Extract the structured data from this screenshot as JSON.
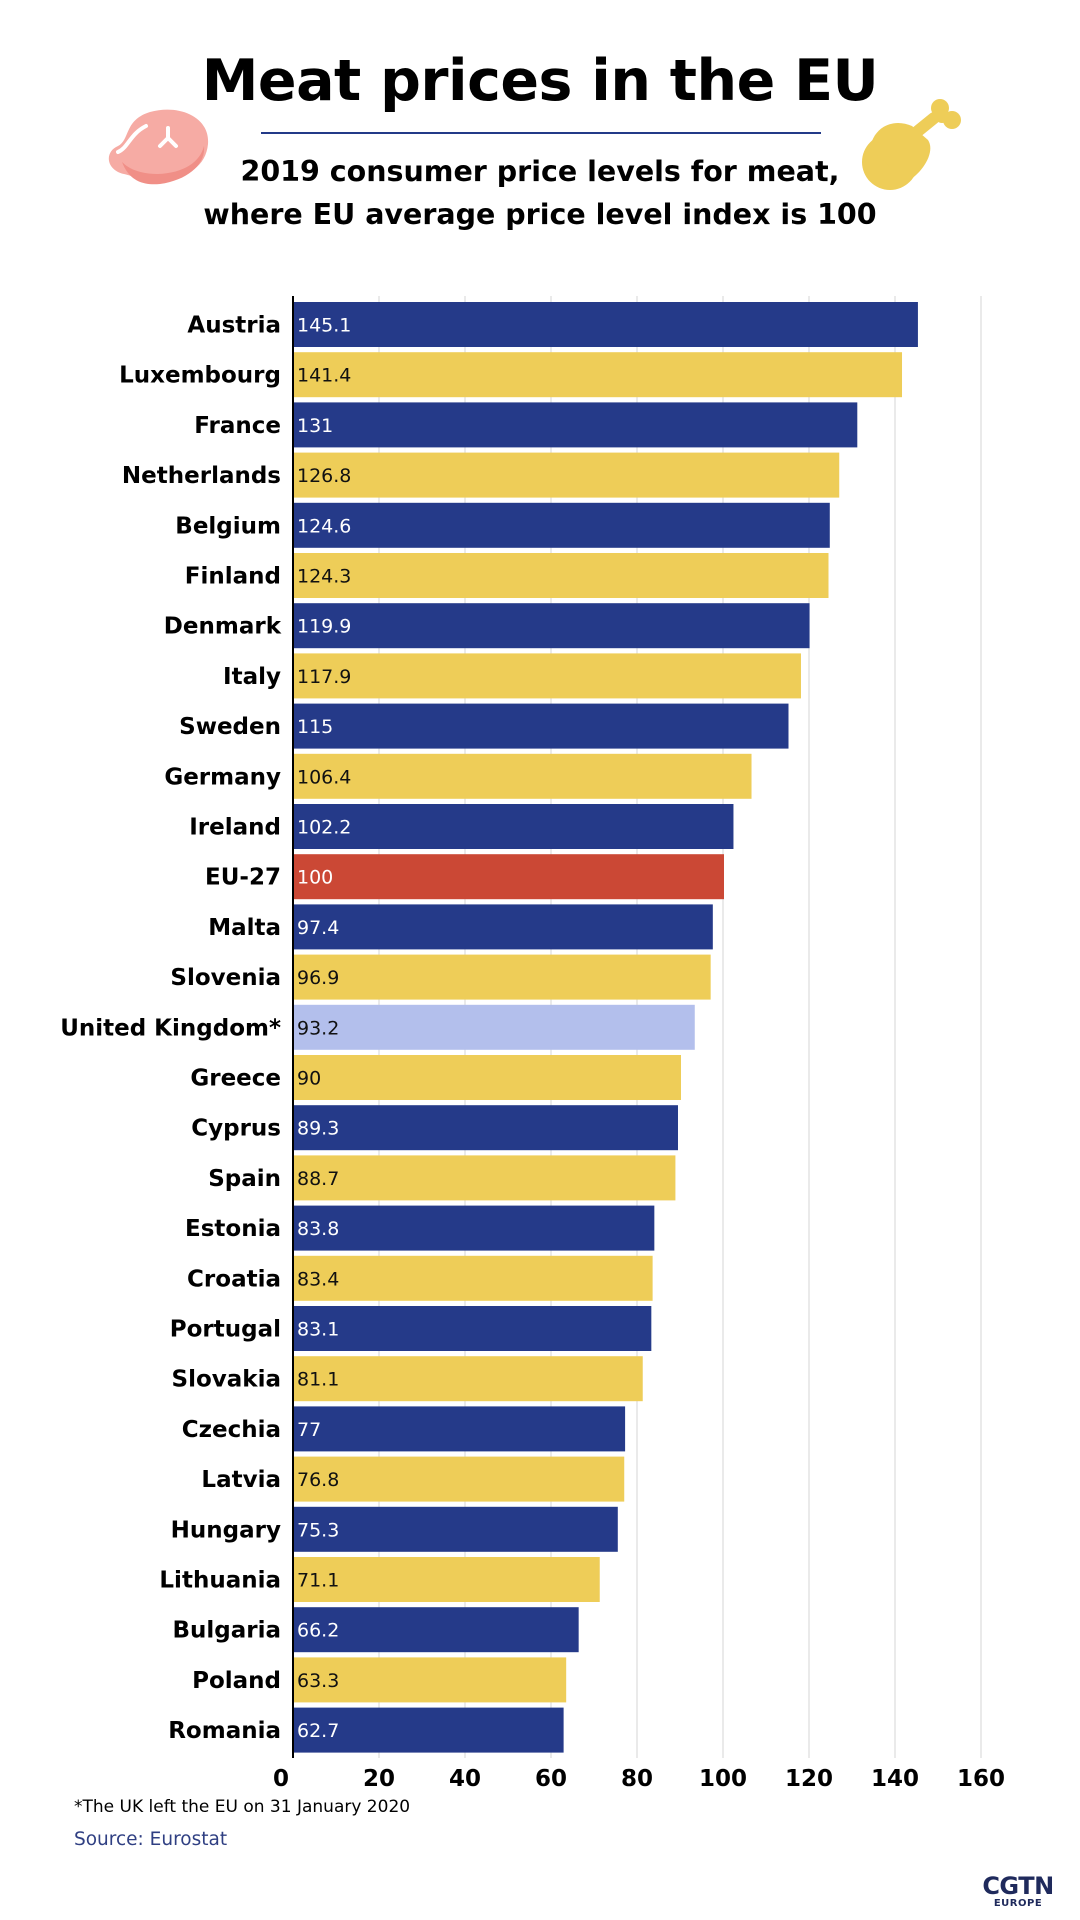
{
  "header": {
    "title": "Meat prices in the EU",
    "subtitle_line1": "2019 consumer price levels for meat,",
    "subtitle_line2": "where EU average price level index is 100"
  },
  "icons": {
    "left": "steak-icon",
    "right": "chicken-drumstick-icon"
  },
  "colors": {
    "navy": "#253a89",
    "yellow": "#eecd58",
    "red": "#cb4835",
    "light_blue": "#b3bfec",
    "steak": "#f6aba4",
    "drumstick": "#eecd58"
  },
  "chart_data": {
    "type": "bar",
    "orientation": "horizontal",
    "categories": [
      "Austria",
      "Luxembourg",
      "France",
      "Netherlands",
      "Belgium",
      "Finland",
      "Denmark",
      "Italy",
      "Sweden",
      "Germany",
      "Ireland",
      "EU-27",
      "Malta",
      "Slovenia",
      "United Kingdom*",
      "Greece",
      "Cyprus",
      "Spain",
      "Estonia",
      "Croatia",
      "Portugal",
      "Slovakia",
      "Czechia",
      "Latvia",
      "Hungary",
      "Lithuania",
      "Bulgaria",
      "Poland",
      "Romania"
    ],
    "values": [
      145.1,
      141.4,
      131,
      126.8,
      124.6,
      124.3,
      119.9,
      117.9,
      115,
      106.4,
      102.2,
      100,
      97.4,
      96.9,
      93.2,
      90,
      89.3,
      88.7,
      83.8,
      83.4,
      83.1,
      81.1,
      77,
      76.8,
      75.3,
      71.1,
      66.2,
      63.3,
      62.7
    ],
    "value_labels": [
      "145.1",
      "141.4",
      "131",
      "126.8",
      "124.6",
      "124.3",
      "119.9",
      "117.9",
      "115",
      "106.4",
      "102.2",
      "100",
      "97.4",
      "96.9",
      "93.2",
      "90",
      "89.3",
      "88.7",
      "83.8",
      "83.4",
      "83.1",
      "81.1",
      "77",
      "76.8",
      "75.3",
      "71.1",
      "66.2",
      "63.3",
      "62.7"
    ],
    "bar_colors": [
      "#253a89",
      "#eecd58",
      "#253a89",
      "#eecd58",
      "#253a89",
      "#eecd58",
      "#253a89",
      "#eecd58",
      "#253a89",
      "#eecd58",
      "#253a89",
      "#cb4835",
      "#253a89",
      "#eecd58",
      "#b3bfec",
      "#eecd58",
      "#253a89",
      "#eecd58",
      "#253a89",
      "#eecd58",
      "#253a89",
      "#eecd58",
      "#253a89",
      "#eecd58",
      "#253a89",
      "#eecd58",
      "#253a89",
      "#eecd58",
      "#253a89"
    ],
    "label_colors": [
      "#ffffff",
      "#111111",
      "#ffffff",
      "#111111",
      "#ffffff",
      "#111111",
      "#ffffff",
      "#111111",
      "#ffffff",
      "#111111",
      "#ffffff",
      "#ffffff",
      "#ffffff",
      "#111111",
      "#111111",
      "#111111",
      "#ffffff",
      "#111111",
      "#ffffff",
      "#111111",
      "#ffffff",
      "#111111",
      "#ffffff",
      "#111111",
      "#ffffff",
      "#111111",
      "#ffffff",
      "#111111",
      "#ffffff"
    ],
    "x_ticks": [
      "0",
      "20",
      "40",
      "60",
      "80",
      "100",
      "120",
      "140",
      "160"
    ],
    "xlim": [
      0,
      160
    ],
    "grid": "vertical"
  },
  "footnote": "*The UK left the EU on 31 January 2020",
  "source": "Source: Eurostat",
  "logo": {
    "main": "CGTN",
    "sub": "EUROPE"
  }
}
